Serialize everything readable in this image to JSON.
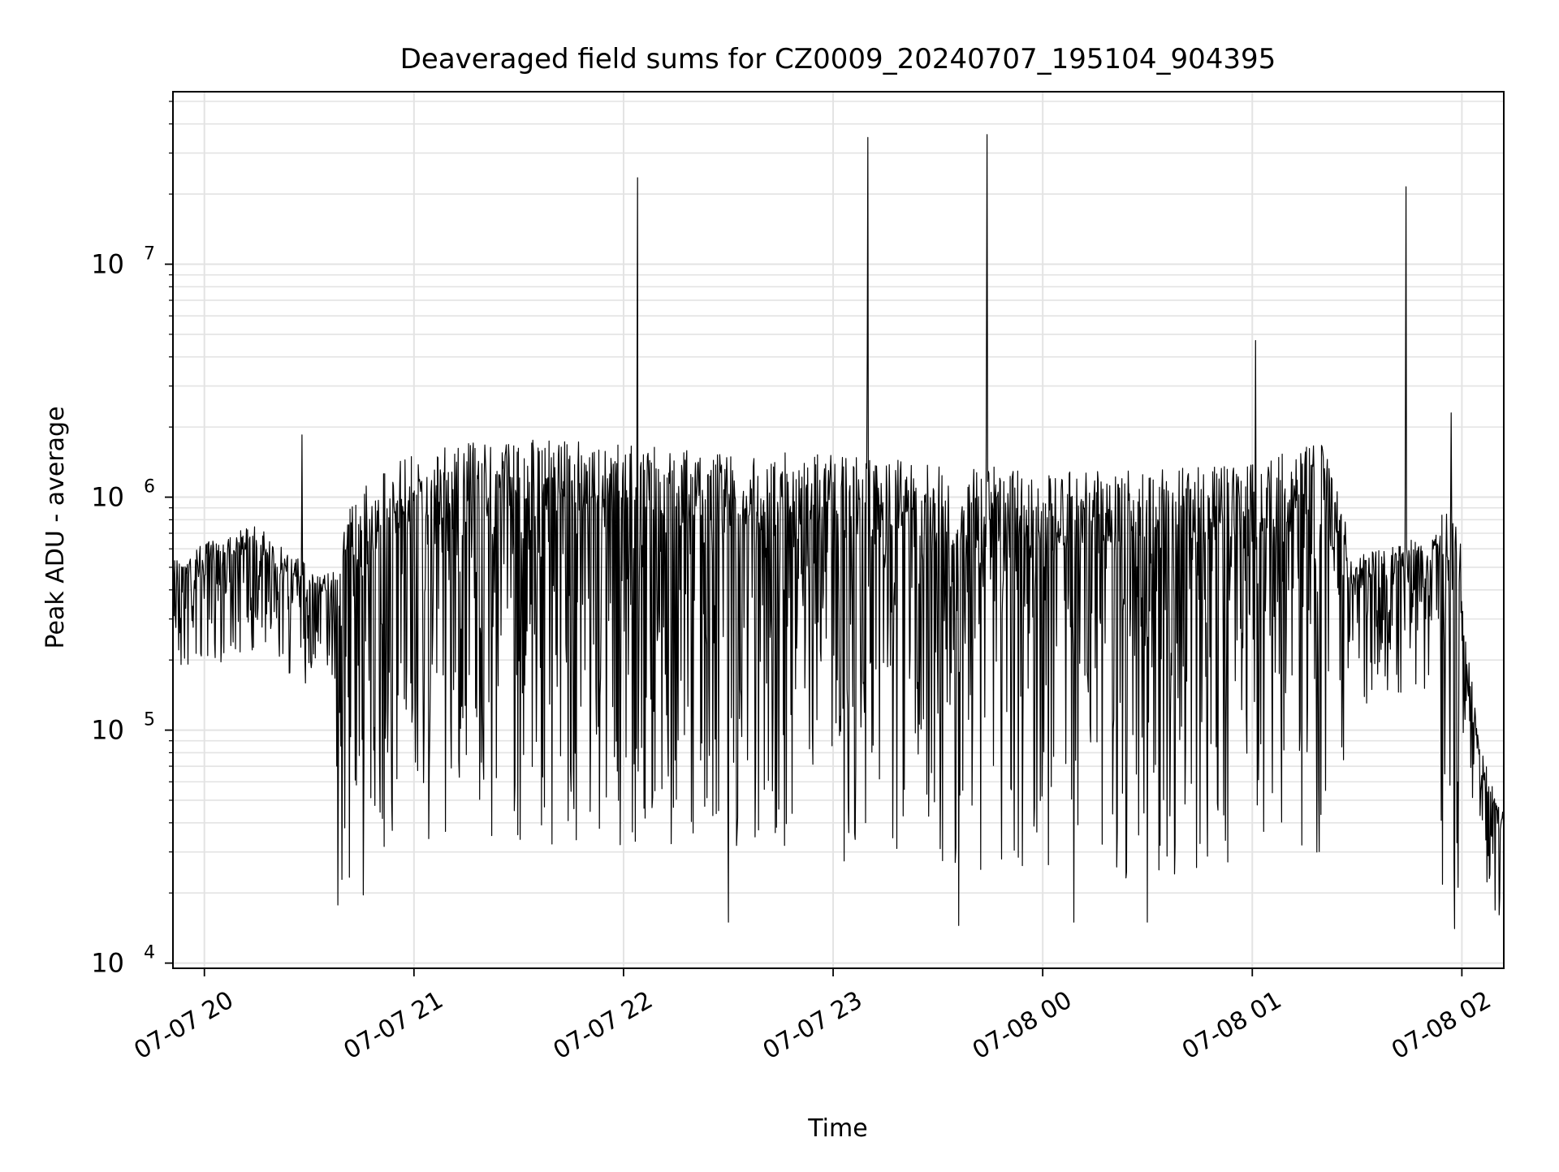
{
  "chart_data": {
    "type": "line",
    "title": "Deaveraged field sums for CZ0009_20240707_195104_904395",
    "xlabel": "Time",
    "ylabel": "Peak ADU - average",
    "yscale": "log",
    "ylim": [
      9500,
      55000000
    ],
    "xlim": [
      "2024-07-07 19:51",
      "2024-07-08 02:12"
    ],
    "grid": true,
    "x_ticks": [
      {
        "t": "2024-07-07 20:00",
        "label": "07-07 20"
      },
      {
        "t": "2024-07-07 21:00",
        "label": "07-07 21"
      },
      {
        "t": "2024-07-07 22:00",
        "label": "07-07 22"
      },
      {
        "t": "2024-07-07 23:00",
        "label": "07-07 23"
      },
      {
        "t": "2024-07-08 00:00",
        "label": "07-08 00"
      },
      {
        "t": "2024-07-08 01:00",
        "label": "07-08 01"
      },
      {
        "t": "2024-07-08 02:00",
        "label": "07-08 02"
      }
    ],
    "y_ticks": [
      {
        "value": 10000,
        "base": "10",
        "exp": "4"
      },
      {
        "value": 100000,
        "base": "10",
        "exp": "5"
      },
      {
        "value": 1000000,
        "base": "10",
        "exp": "6"
      },
      {
        "value": 10000000,
        "base": "10",
        "exp": "7"
      }
    ],
    "series": [
      {
        "color": "#000000",
        "baseline": [
          [
            "2024-07-07 19:51",
            450000
          ],
          [
            "2024-07-07 20:05",
            550000
          ],
          [
            "2024-07-07 20:15",
            620000
          ],
          [
            "2024-07-07 20:23",
            480000
          ],
          [
            "2024-07-07 20:35",
            380000
          ],
          [
            "2024-07-07 20:38",
            450000
          ],
          [
            "2024-07-07 21:00",
            800000
          ],
          [
            "2024-07-07 21:30",
            900000
          ],
          [
            "2024-07-07 22:00",
            850000
          ],
          [
            "2024-07-07 22:30",
            800000
          ],
          [
            "2024-07-07 23:00",
            750000
          ],
          [
            "2024-07-07 23:30",
            700000
          ],
          [
            "2024-07-08 00:00",
            650000
          ],
          [
            "2024-07-08 00:30",
            650000
          ],
          [
            "2024-07-08 01:00",
            700000
          ],
          [
            "2024-07-08 01:20",
            850000
          ],
          [
            "2024-07-08 01:27",
            420000
          ],
          [
            "2024-07-08 01:55",
            550000
          ],
          [
            "2024-07-08 02:00",
            300000
          ],
          [
            "2024-07-08 02:05",
            70000
          ],
          [
            "2024-07-08 02:12",
            35000
          ]
        ],
        "spikes": [
          [
            "2024-07-07 20:28",
            1850000
          ],
          [
            "2024-07-07 22:04",
            23500000
          ],
          [
            "2024-07-07 23:10",
            35000000
          ],
          [
            "2024-07-07 23:44",
            36000000
          ],
          [
            "2024-07-08 01:01",
            4700000
          ],
          [
            "2024-07-08 01:44",
            21500000
          ],
          [
            "2024-07-08 01:57",
            2300000
          ]
        ],
        "dips": [
          [
            "2024-07-07 22:30",
            15000
          ],
          [
            "2024-07-07 23:36",
            14500
          ],
          [
            "2024-07-08 00:09",
            15000
          ],
          [
            "2024-07-08 00:30",
            15000
          ]
        ]
      }
    ]
  }
}
